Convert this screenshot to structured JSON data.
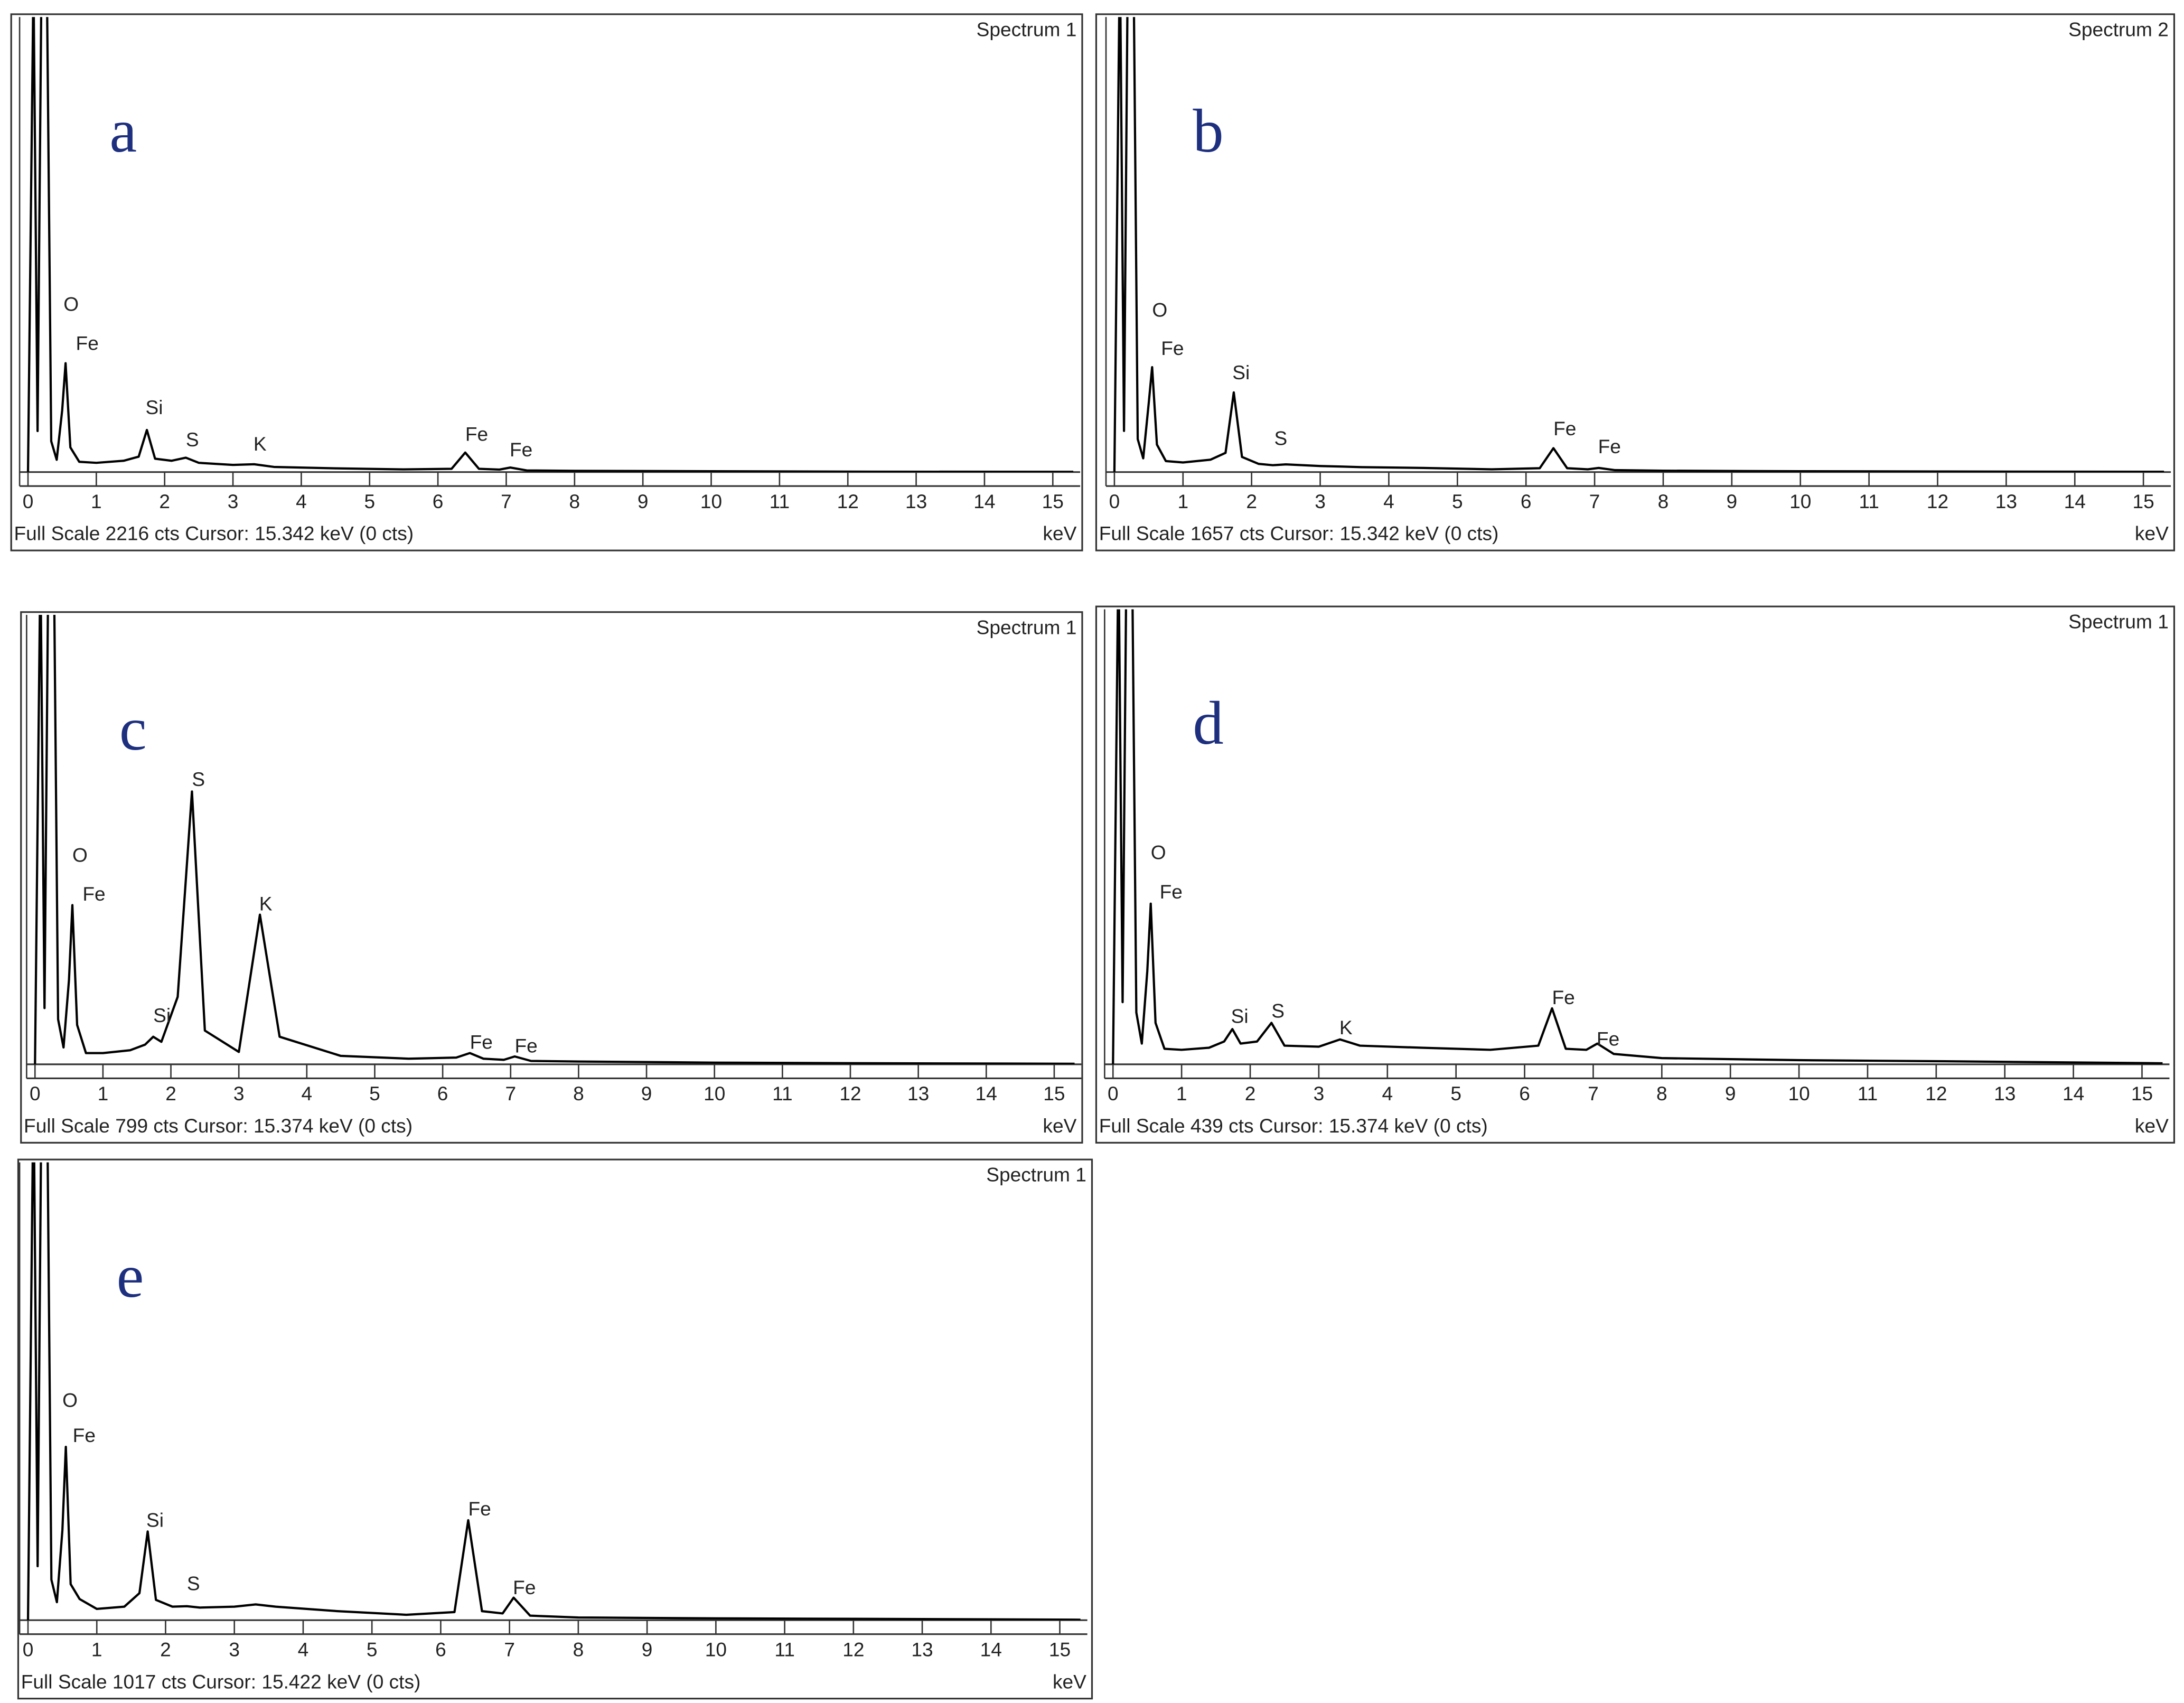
{
  "chart_data": [
    {
      "type": "line",
      "label": "a",
      "subtitle": "Spectrum 1",
      "xlabel": "keV",
      "footer": "Full Scale 2216 cts  Cursor: 15.342 keV (0 cts)",
      "color": "#000000",
      "xlim": [
        0,
        15.4
      ],
      "ylim": [
        0,
        2216
      ],
      "xticks": [
        0,
        1,
        2,
        3,
        4,
        5,
        6,
        7,
        8,
        9,
        10,
        11,
        12,
        13,
        14,
        15
      ],
      "x": [
        0,
        0.08,
        0.14,
        0.2,
        0.27,
        0.34,
        0.42,
        0.5,
        0.55,
        0.62,
        0.75,
        1.0,
        1.4,
        1.62,
        1.74,
        1.86,
        2.1,
        2.31,
        2.5,
        3.0,
        3.31,
        3.6,
        4.5,
        5.5,
        6.2,
        6.4,
        6.6,
        6.9,
        7.06,
        7.3,
        8,
        10,
        12,
        15.3
      ],
      "values": [
        0,
        2400,
        200,
        2500,
        2600,
        150,
        60,
        300,
        530,
        120,
        50,
        45,
        55,
        75,
        205,
        65,
        55,
        70,
        45,
        35,
        38,
        25,
        18,
        13,
        16,
        95,
        16,
        12,
        22,
        8,
        6,
        4,
        2,
        1
      ],
      "annotations": [
        {
          "text": "O",
          "x": 0.52,
          "y": 810
        },
        {
          "text": "Fe",
          "x": 0.7,
          "y": 620
        },
        {
          "text": "Si",
          "x": 1.72,
          "y": 307
        },
        {
          "text": "S",
          "x": 2.31,
          "y": 150
        },
        {
          "text": "K",
          "x": 3.3,
          "y": 130
        },
        {
          "text": "Fe",
          "x": 6.4,
          "y": 177
        },
        {
          "text": "Fe",
          "x": 7.05,
          "y": 102
        }
      ]
    },
    {
      "type": "line",
      "label": "b",
      "subtitle": "Spectrum 2",
      "xlabel": "keV",
      "footer": "Full Scale 1657 cts  Cursor: 15.342 keV (0 cts)",
      "color": "#000000",
      "xlim": [
        0,
        15.4
      ],
      "ylim": [
        0,
        1657
      ],
      "xticks": [
        0,
        1,
        2,
        3,
        4,
        5,
        6,
        7,
        8,
        9,
        10,
        11,
        12,
        13,
        14,
        15
      ],
      "x": [
        0,
        0.08,
        0.14,
        0.2,
        0.27,
        0.34,
        0.42,
        0.5,
        0.55,
        0.62,
        0.75,
        1.0,
        1.4,
        1.62,
        1.74,
        1.86,
        2.1,
        2.31,
        2.5,
        3.0,
        3.31,
        3.6,
        4.5,
        5.5,
        6.2,
        6.4,
        6.6,
        6.9,
        7.06,
        7.3,
        8,
        10,
        12,
        15.3
      ],
      "values": [
        0,
        1900,
        150,
        2000,
        2100,
        120,
        50,
        250,
        382,
        100,
        40,
        35,
        45,
        70,
        290,
        55,
        30,
        25,
        28,
        22,
        20,
        18,
        15,
        10,
        14,
        87,
        14,
        10,
        15,
        7,
        5,
        3,
        2,
        1
      ],
      "annotations": [
        {
          "text": "O",
          "x": 0.55,
          "y": 585
        },
        {
          "text": "Fe",
          "x": 0.68,
          "y": 445
        },
        {
          "text": "Si",
          "x": 1.72,
          "y": 357
        },
        {
          "text": "S",
          "x": 2.33,
          "y": 117
        },
        {
          "text": "Fe",
          "x": 6.4,
          "y": 153
        },
        {
          "text": "Fe",
          "x": 7.05,
          "y": 87
        }
      ]
    },
    {
      "type": "line",
      "label": "c",
      "subtitle": "Spectrum 1",
      "xlabel": "keV",
      "footer": "Full Scale 799 cts  Cursor: 15.374 keV (0 cts)",
      "color": "#000000",
      "xlim": [
        0,
        15.4
      ],
      "ylim": [
        0,
        799
      ],
      "xticks": [
        0,
        1,
        2,
        3,
        4,
        5,
        6,
        7,
        8,
        9,
        10,
        11,
        12,
        13,
        14,
        15
      ],
      "x": [
        0,
        0.08,
        0.14,
        0.2,
        0.27,
        0.34,
        0.42,
        0.5,
        0.55,
        0.62,
        0.75,
        1.0,
        1.4,
        1.62,
        1.74,
        1.86,
        2.1,
        2.31,
        2.5,
        3.0,
        3.31,
        3.6,
        4.5,
        5.5,
        6.2,
        6.4,
        6.6,
        6.9,
        7.06,
        7.3,
        8,
        10,
        12,
        15.3
      ],
      "values": [
        0,
        900,
        100,
        950,
        1000,
        80,
        30,
        150,
        283,
        70,
        20,
        20,
        25,
        35,
        49,
        40,
        120,
        485,
        60,
        22,
        266,
        49,
        15,
        10,
        12,
        20,
        10,
        8,
        14,
        6,
        5,
        3,
        2,
        1
      ],
      "annotations": [
        {
          "text": "O",
          "x": 0.55,
          "y": 369
        },
        {
          "text": "Fe",
          "x": 0.7,
          "y": 300
        },
        {
          "text": "Si",
          "x": 1.74,
          "y": 84
        },
        {
          "text": "S",
          "x": 2.31,
          "y": 504
        },
        {
          "text": "K",
          "x": 3.3,
          "y": 283
        },
        {
          "text": "Fe",
          "x": 6.4,
          "y": 37
        },
        {
          "text": "Fe",
          "x": 7.06,
          "y": 30
        }
      ]
    },
    {
      "type": "line",
      "label": "d",
      "subtitle": "Spectrum 1",
      "xlabel": "keV",
      "footer": "Full Scale 439 cts  Cursor: 15.374 keV (0 cts)",
      "color": "#000000",
      "xlim": [
        0,
        15.4
      ],
      "ylim": [
        0,
        439
      ],
      "xticks": [
        0,
        1,
        2,
        3,
        4,
        5,
        6,
        7,
        8,
        9,
        10,
        11,
        12,
        13,
        14,
        15
      ],
      "x": [
        0,
        0.08,
        0.14,
        0.2,
        0.27,
        0.34,
        0.42,
        0.5,
        0.55,
        0.62,
        0.75,
        1.0,
        1.4,
        1.62,
        1.74,
        1.86,
        2.1,
        2.31,
        2.5,
        3.0,
        3.31,
        3.6,
        4.5,
        5.5,
        6.2,
        6.4,
        6.6,
        6.9,
        7.06,
        7.3,
        8,
        10,
        12,
        15.3
      ],
      "values": [
        0,
        500,
        60,
        520,
        550,
        50,
        20,
        90,
        155,
        40,
        15,
        14,
        16,
        22,
        34,
        20,
        22,
        40,
        18,
        17,
        24,
        18,
        16,
        14,
        18,
        54,
        15,
        14,
        20,
        10,
        6,
        4,
        3,
        1
      ],
      "annotations": [
        {
          "text": "O",
          "x": 0.55,
          "y": 203
        },
        {
          "text": "Fe",
          "x": 0.68,
          "y": 165
        },
        {
          "text": "Si",
          "x": 1.72,
          "y": 45
        },
        {
          "text": "S",
          "x": 2.31,
          "y": 50
        },
        {
          "text": "K",
          "x": 3.3,
          "y": 34
        },
        {
          "text": "Fe",
          "x": 6.4,
          "y": 63
        },
        {
          "text": "Fe",
          "x": 7.05,
          "y": 23
        }
      ]
    },
    {
      "type": "line",
      "label": "e",
      "subtitle": "Spectrum 1",
      "xlabel": "keV",
      "footer": "Full Scale 1017 cts  Cursor: 15.422 keV (0 cts)",
      "color": "#000000",
      "xlim": [
        0,
        15.4
      ],
      "ylim": [
        0,
        1017
      ],
      "xticks": [
        0,
        1,
        2,
        3,
        4,
        5,
        6,
        7,
        8,
        9,
        10,
        11,
        12,
        13,
        14,
        15
      ],
      "x": [
        0,
        0.08,
        0.14,
        0.2,
        0.27,
        0.34,
        0.42,
        0.5,
        0.55,
        0.62,
        0.75,
        1.0,
        1.4,
        1.62,
        1.74,
        1.86,
        2.1,
        2.31,
        2.5,
        3.0,
        3.31,
        3.6,
        4.5,
        5.5,
        6.2,
        6.4,
        6.6,
        6.9,
        7.06,
        7.3,
        8,
        10,
        12,
        15.3
      ],
      "values": [
        0,
        1200,
        120,
        1250,
        1300,
        90,
        40,
        200,
        385,
        80,
        47,
        25,
        30,
        60,
        197,
        45,
        30,
        31,
        28,
        30,
        35,
        30,
        20,
        12,
        18,
        222,
        20,
        15,
        50,
        10,
        6,
        4,
        3,
        1
      ],
      "annotations": [
        {
          "text": "O",
          "x": 0.5,
          "y": 485
        },
        {
          "text": "Fe",
          "x": 0.65,
          "y": 407
        },
        {
          "text": "Si",
          "x": 1.72,
          "y": 219
        },
        {
          "text": "S",
          "x": 2.31,
          "y": 78
        },
        {
          "text": "Fe",
          "x": 6.4,
          "y": 244
        },
        {
          "text": "Fe",
          "x": 7.05,
          "y": 69
        }
      ]
    }
  ]
}
